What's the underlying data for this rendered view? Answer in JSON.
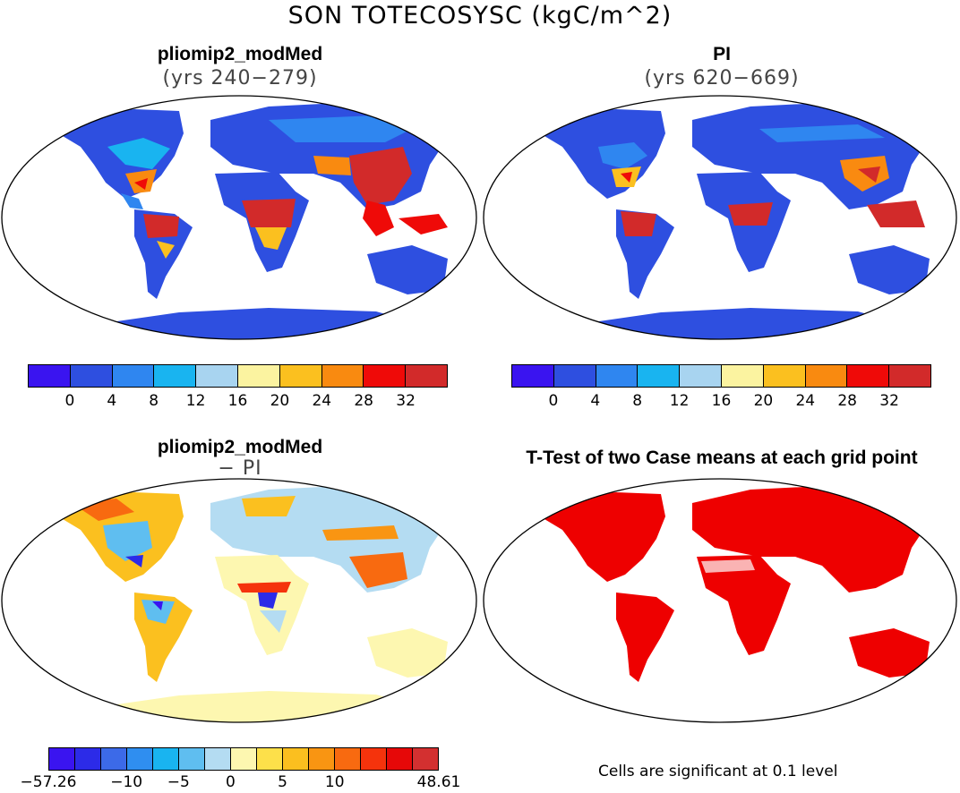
{
  "main_title": "SON TOTECOSYSC (kgC/m^2)",
  "panels": [
    {
      "title": "pliomip2_modMed",
      "subtitle": "(yrs 240−279)"
    },
    {
      "title": "PI",
      "subtitle": "(yrs 620−669)"
    },
    {
      "title": "pliomip2_modMed",
      "subtitle": "− PI"
    },
    {
      "title": "T-Test of two Case means at each grid point",
      "subtitle": ""
    }
  ],
  "colorbar_abs": {
    "colors": [
      "#3a14f0",
      "#2e4fe0",
      "#2f86f0",
      "#19b4f0",
      "#a8d4f0",
      "#fbf3a0",
      "#fbc01f",
      "#f98a10",
      "#ef0a08",
      "#d22a2a"
    ],
    "ticks": [
      "0",
      "4",
      "8",
      "12",
      "16",
      "20",
      "24",
      "28",
      "32"
    ]
  },
  "colorbar_diff": {
    "colors": [
      "#3a14f0",
      "#2c2be8",
      "#3c6ae8",
      "#2f8ef0",
      "#19b4f0",
      "#5fbef0",
      "#b4dcf2",
      "#fdf7b0",
      "#fde04a",
      "#fbbf1f",
      "#f99512",
      "#f86a10",
      "#f5330c",
      "#e60808",
      "#d33030"
    ],
    "ticks": [
      "−57.26",
      "−10",
      "−5",
      "0",
      "5",
      "10",
      "48.61"
    ]
  },
  "note": "Cells are significant at 0.1 level"
}
